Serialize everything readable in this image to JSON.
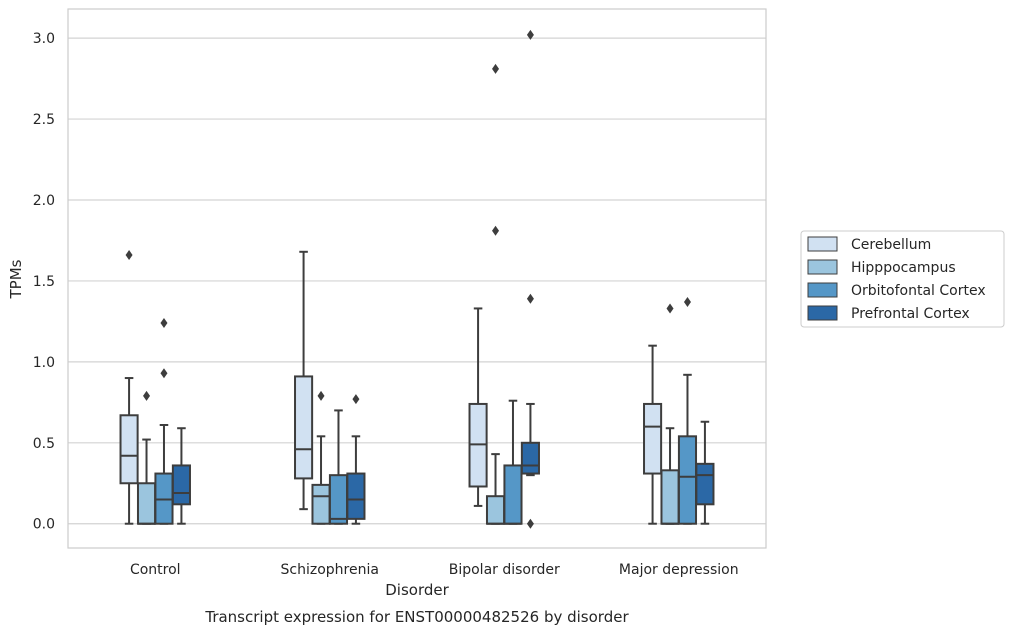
{
  "chart_data": {
    "type": "box",
    "caption": "Transcript expression for ENST00000482526 by disorder",
    "xlabel": "Disorder",
    "ylabel": "TPMs",
    "ylim": [
      -0.15,
      3.18
    ],
    "yticks": [
      0.0,
      0.5,
      1.0,
      1.5,
      2.0,
      2.5,
      3.0
    ],
    "ytick_labels": [
      "0.0",
      "0.5",
      "1.0",
      "1.5",
      "2.0",
      "2.5",
      "3.0"
    ],
    "grid": "horizontal",
    "legend_position": "right",
    "categories": [
      "Control",
      "Schizophrenia",
      "Bipolar disorder",
      "Major depression"
    ],
    "series": [
      {
        "name": "Cerebellum",
        "color": "#d1e1f2",
        "boxes": [
          {
            "whislo": 0.0,
            "q1": 0.25,
            "med": 0.42,
            "q3": 0.67,
            "whishi": 0.9,
            "fliers": [
              1.66
            ]
          },
          {
            "whislo": 0.09,
            "q1": 0.28,
            "med": 0.46,
            "q3": 0.91,
            "whishi": 1.68,
            "fliers": []
          },
          {
            "whislo": 0.11,
            "q1": 0.23,
            "med": 0.49,
            "q3": 0.74,
            "whishi": 1.33,
            "fliers": []
          },
          {
            "whislo": 0.0,
            "q1": 0.31,
            "med": 0.6,
            "q3": 0.74,
            "whishi": 1.1,
            "fliers": []
          }
        ]
      },
      {
        "name": "Hipppocampus",
        "color": "#9bc5de",
        "boxes": [
          {
            "whislo": 0.0,
            "q1": 0.0,
            "med": 0.0,
            "q3": 0.25,
            "whishi": 0.52,
            "fliers": [
              0.79
            ]
          },
          {
            "whislo": 0.0,
            "q1": 0.0,
            "med": 0.17,
            "q3": 0.24,
            "whishi": 0.54,
            "fliers": [
              0.79
            ]
          },
          {
            "whislo": 0.0,
            "q1": 0.0,
            "med": 0.0,
            "q3": 0.17,
            "whishi": 0.43,
            "fliers": [
              2.81,
              1.81
            ]
          },
          {
            "whislo": 0.0,
            "q1": 0.0,
            "med": 0.0,
            "q3": 0.33,
            "whishi": 0.59,
            "fliers": [
              1.33
            ]
          }
        ]
      },
      {
        "name": "Orbitofontal Cortex",
        "color": "#5597c7",
        "boxes": [
          {
            "whislo": 0.0,
            "q1": 0.0,
            "med": 0.15,
            "q3": 0.31,
            "whishi": 0.61,
            "fliers": [
              1.24,
              0.93
            ]
          },
          {
            "whislo": 0.0,
            "q1": 0.0,
            "med": 0.03,
            "q3": 0.3,
            "whishi": 0.7,
            "fliers": []
          },
          {
            "whislo": 0.0,
            "q1": 0.0,
            "med": 0.0,
            "q3": 0.36,
            "whishi": 0.76,
            "fliers": []
          },
          {
            "whislo": 0.0,
            "q1": 0.0,
            "med": 0.29,
            "q3": 0.54,
            "whishi": 0.92,
            "fliers": [
              1.37
            ]
          }
        ]
      },
      {
        "name": "Prefrontal Cortex",
        "color": "#2b68a6",
        "boxes": [
          {
            "whislo": 0.0,
            "q1": 0.12,
            "med": 0.19,
            "q3": 0.36,
            "whishi": 0.59,
            "fliers": []
          },
          {
            "whislo": 0.0,
            "q1": 0.03,
            "med": 0.15,
            "q3": 0.31,
            "whishi": 0.54,
            "fliers": [
              0.77
            ]
          },
          {
            "whislo": 0.3,
            "q1": 0.31,
            "med": 0.36,
            "q3": 0.5,
            "whishi": 0.74,
            "fliers": [
              3.02,
              1.39,
              0.0
            ]
          },
          {
            "whislo": 0.0,
            "q1": 0.12,
            "med": 0.3,
            "q3": 0.37,
            "whishi": 0.63,
            "fliers": []
          }
        ]
      }
    ]
  }
}
